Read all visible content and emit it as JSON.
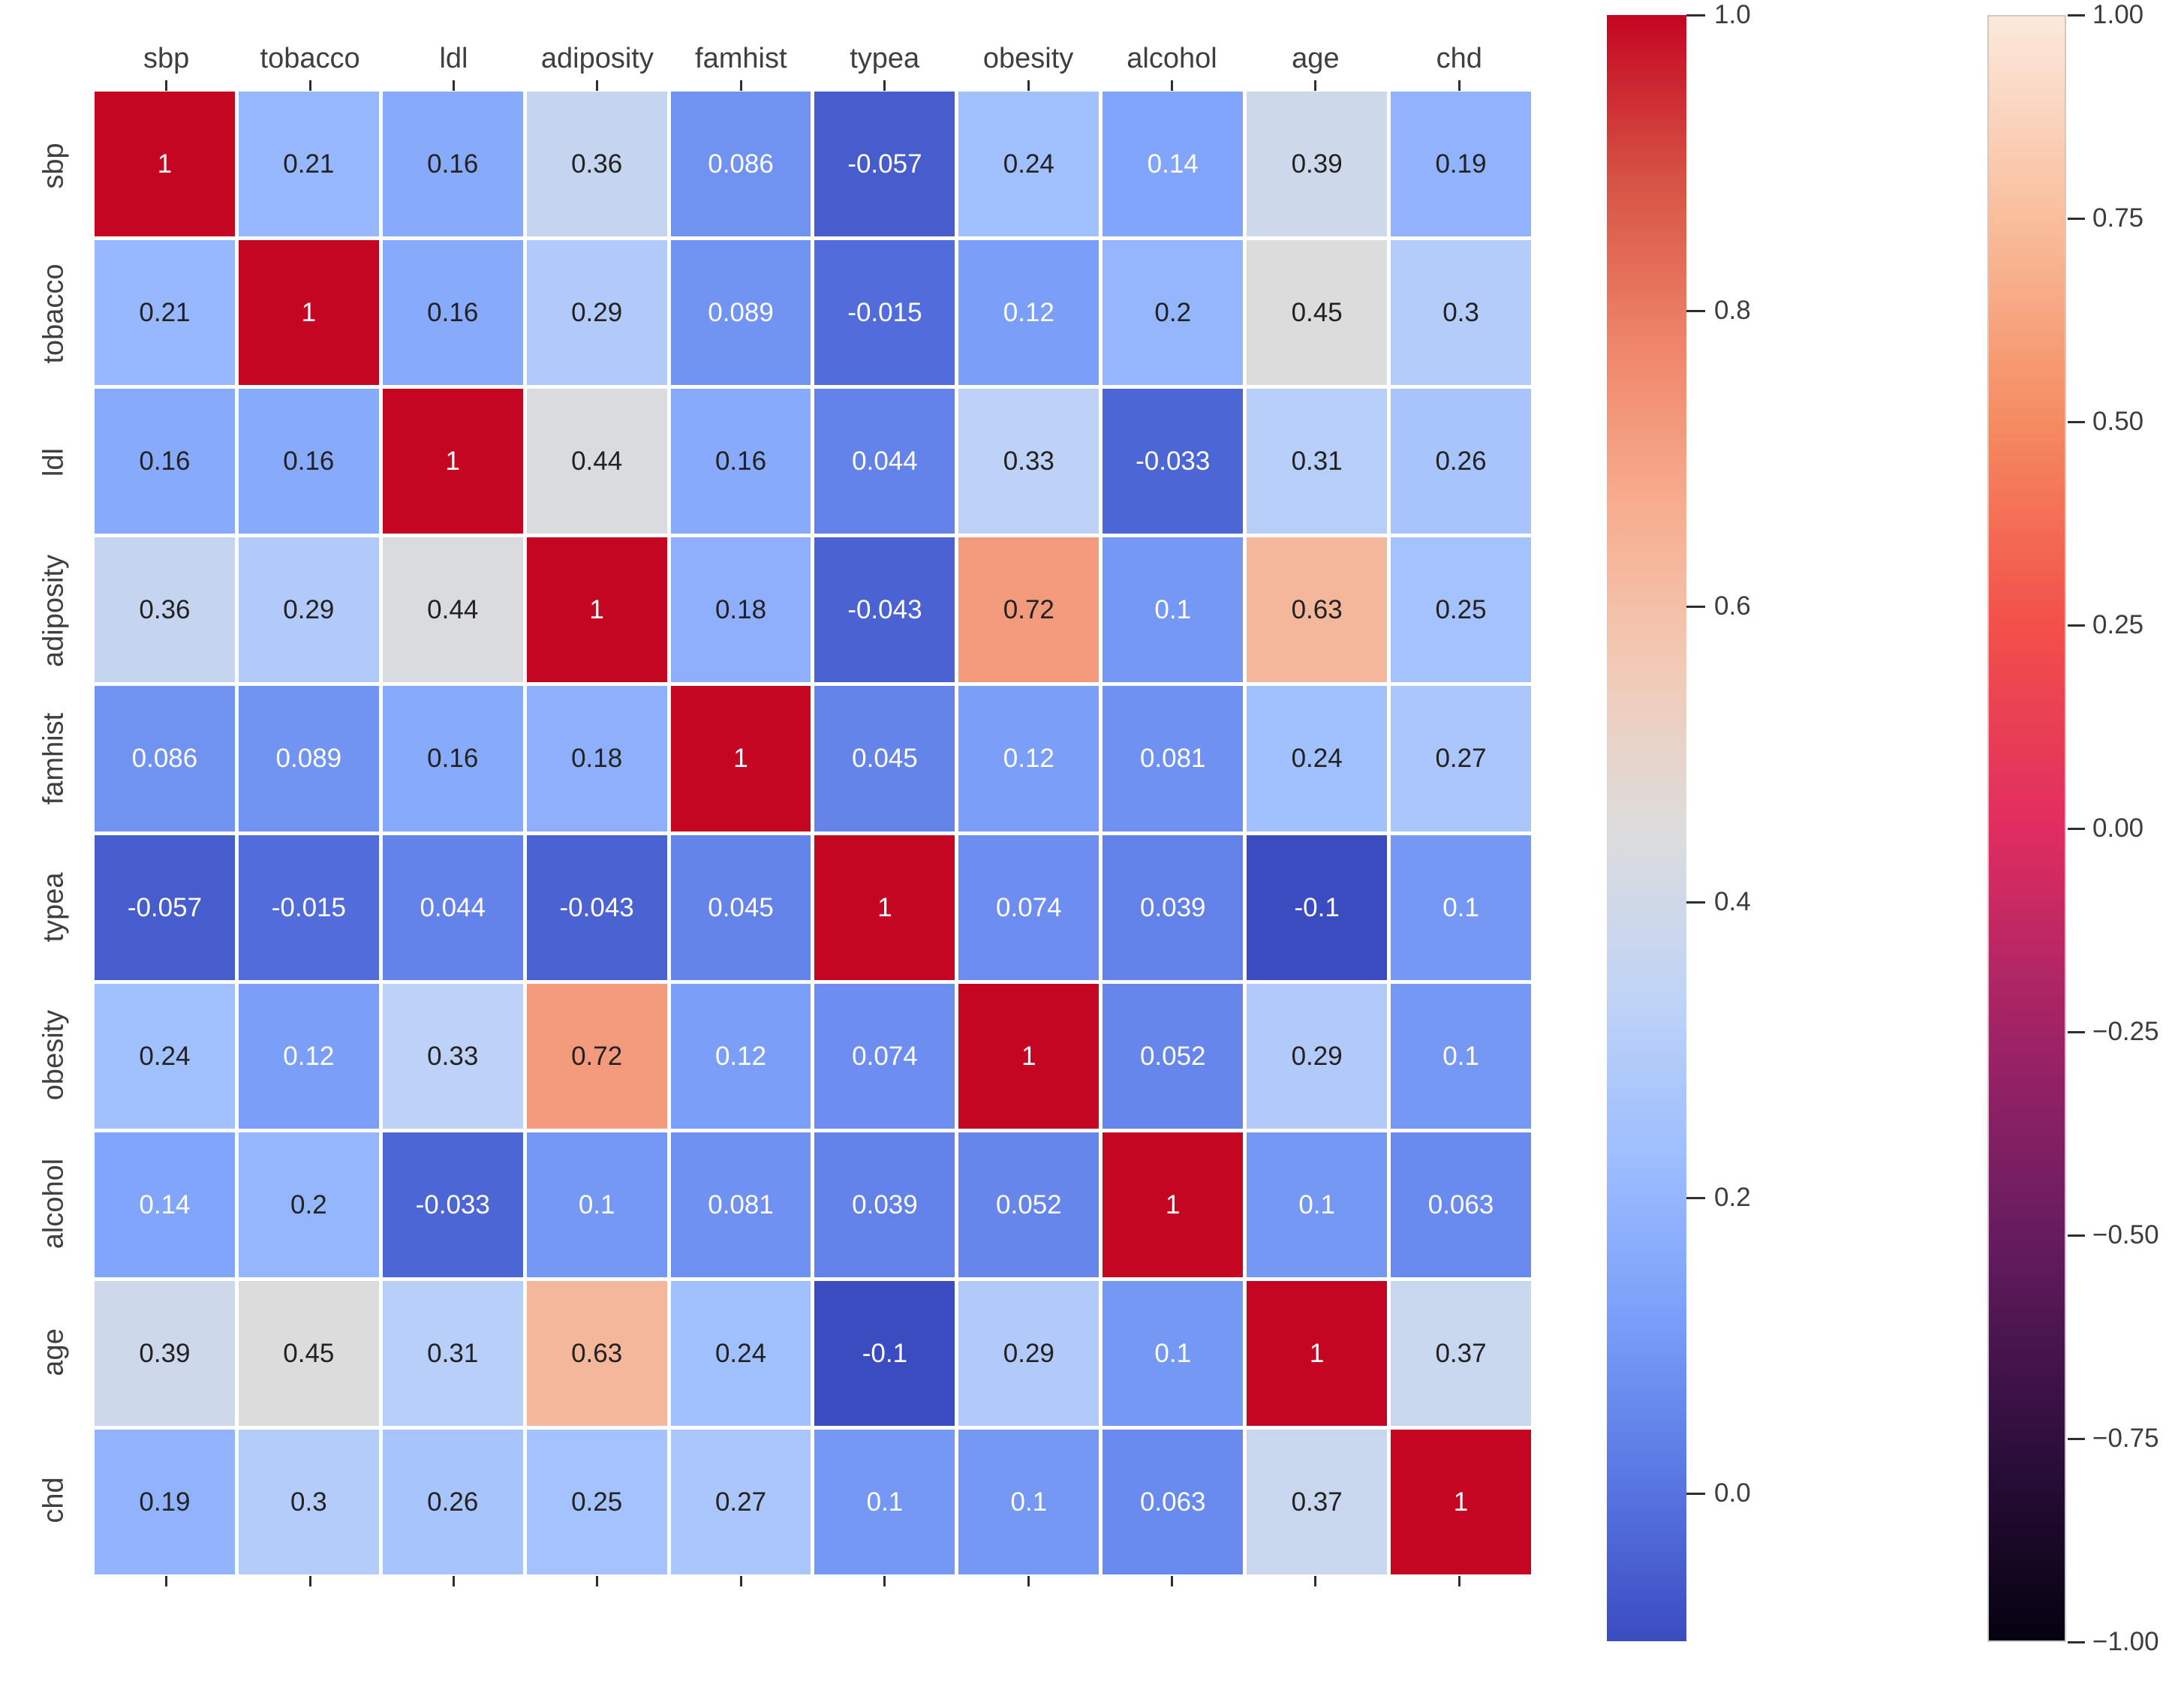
{
  "chart_data": {
    "type": "heatmap",
    "title": "",
    "description": "Correlation matrix heatmap of heart-disease dataset variables, annotated with correlation coefficients",
    "categories": [
      "sbp",
      "tobacco",
      "ldl",
      "adiposity",
      "famhist",
      "typea",
      "obesity",
      "alcohol",
      "age",
      "chd"
    ],
    "matrix_display": [
      [
        "1",
        "0.21",
        "0.16",
        "0.36",
        "0.086",
        "-0.057",
        "0.24",
        "0.14",
        "0.39",
        "0.19"
      ],
      [
        "0.21",
        "1",
        "0.16",
        "0.29",
        "0.089",
        "-0.015",
        "0.12",
        "0.2",
        "0.45",
        "0.3"
      ],
      [
        "0.16",
        "0.16",
        "1",
        "0.44",
        "0.16",
        "0.044",
        "0.33",
        "-0.033",
        "0.31",
        "0.26"
      ],
      [
        "0.36",
        "0.29",
        "0.44",
        "1",
        "0.18",
        "-0.043",
        "0.72",
        "0.1",
        "0.63",
        "0.25"
      ],
      [
        "0.086",
        "0.089",
        "0.16",
        "0.18",
        "1",
        "0.045",
        "0.12",
        "0.081",
        "0.24",
        "0.27"
      ],
      [
        "-0.057",
        "-0.015",
        "0.044",
        "-0.043",
        "0.045",
        "1",
        "0.074",
        "0.039",
        "-0.1",
        "0.1"
      ],
      [
        "0.24",
        "0.12",
        "0.33",
        "0.72",
        "0.12",
        "0.074",
        "1",
        "0.052",
        "0.29",
        "0.1"
      ],
      [
        "0.14",
        "0.2",
        "-0.033",
        "0.1",
        "0.081",
        "0.039",
        "0.052",
        "1",
        "0.1",
        "0.063"
      ],
      [
        "0.39",
        "0.45",
        "0.31",
        "0.63",
        "0.24",
        "-0.1",
        "0.29",
        "0.1",
        "1",
        "0.37"
      ],
      [
        "0.19",
        "0.3",
        "0.26",
        "0.25",
        "0.27",
        "0.1",
        "0.1",
        "0.063",
        "0.37",
        "1"
      ]
    ],
    "grid": {
      "linecolor": "#ffffff",
      "annot_color_dark": "#222222",
      "annot_color_light": "#ffffff"
    },
    "colormap": {
      "name": "coolwarm",
      "vmin": -0.1,
      "vmax": 1.0,
      "stops": [
        "#3b4cc0",
        "#5977e3",
        "#7b9ff9",
        "#9ebeff",
        "#c0d4f5",
        "#dddcdc",
        "#f2cab5",
        "#f7ac8e",
        "#ee8468",
        "#d65244",
        "#c40622"
      ]
    },
    "colorbars": [
      {
        "name": "coolwarm-colorbar",
        "vmin": -0.1,
        "vmax": 1.0,
        "tick_values": [
          1.0,
          0.8,
          0.6,
          0.4,
          0.2,
          0.0
        ],
        "tick_labels": [
          "1.0",
          "0.8",
          "0.6",
          "0.4",
          "0.2",
          "0.0"
        ],
        "gradient_top_to_bottom": [
          "#c40622",
          "#d65244",
          "#ee8468",
          "#f7ac8e",
          "#f2cab5",
          "#dddcdc",
          "#c0d4f5",
          "#9ebeff",
          "#7b9ff9",
          "#5977e3",
          "#3b4cc0"
        ],
        "outline": "none"
      },
      {
        "name": "rocket-colorbar",
        "vmin": -1.0,
        "vmax": 1.0,
        "tick_values": [
          1.0,
          0.75,
          0.5,
          0.25,
          0.0,
          -0.25,
          -0.5,
          -0.75,
          -1.0
        ],
        "tick_labels": [
          "1.00",
          "0.75",
          "0.50",
          "0.25",
          "0.00",
          "−0.25",
          "−0.50",
          "−0.75",
          "−1.00"
        ],
        "gradient_top_to_bottom": [
          "#fbe9dc",
          "#f9be9c",
          "#f58b61",
          "#f25049",
          "#e02d60",
          "#a02366",
          "#671c60",
          "#2f0f3e",
          "#050210"
        ],
        "outline": "#cbcbcb"
      }
    ],
    "layout": {
      "legend": "none",
      "x_ticks": "top-and-bottom",
      "y_ticks": "none",
      "background": "#ffffff"
    }
  }
}
